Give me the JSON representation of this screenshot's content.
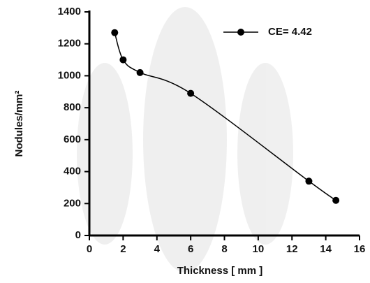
{
  "chart_data": {
    "type": "line",
    "x_label": "Thickness [  mm  ]",
    "y_label": "Nodules/mm²",
    "x": [
      1.5,
      2,
      3,
      6,
      13,
      14.6
    ],
    "series": [
      {
        "name": "CE= 4.42",
        "color": "#000000",
        "values": [
          1270,
          1100,
          1020,
          890,
          340,
          220
        ]
      }
    ],
    "xlim": [
      0,
      16
    ],
    "xticks": [
      0,
      2,
      4,
      6,
      8,
      10,
      12,
      14,
      16
    ],
    "ylim": [
      0,
      1400
    ],
    "yticks": [
      0,
      200,
      400,
      600,
      800,
      1000,
      1200,
      1400
    ],
    "legend": "upper right",
    "smooth": true
  }
}
